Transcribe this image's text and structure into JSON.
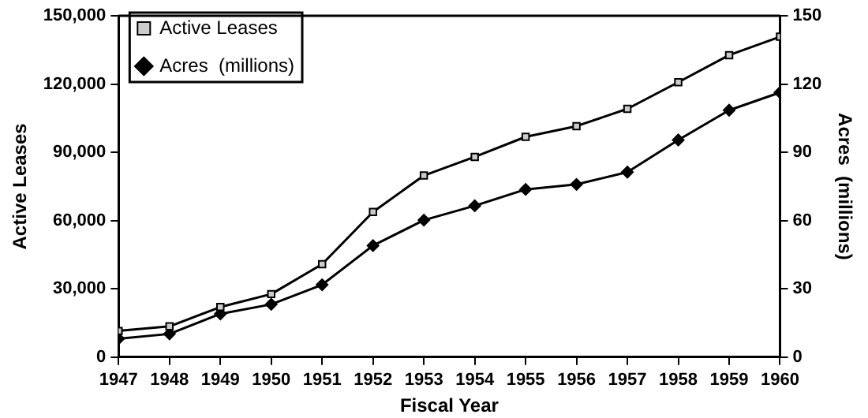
{
  "chart_data": {
    "type": "line",
    "xlabel": "Fiscal Year",
    "ylabel": "Active Leases",
    "y2label": "Acres  (millions)",
    "x": [
      1947,
      1948,
      1949,
      1950,
      1951,
      1952,
      1953,
      1954,
      1955,
      1956,
      1957,
      1958,
      1959,
      1960
    ],
    "xlim": [
      1947,
      1960
    ],
    "xticks": [
      1947,
      1948,
      1949,
      1950,
      1951,
      1952,
      1953,
      1954,
      1955,
      1956,
      1957,
      1958,
      1959,
      1960
    ],
    "ylim": [
      0,
      150000
    ],
    "yticks": [
      0,
      {
        "value": 30000,
        "label": "30,000"
      },
      {
        "value": 60000,
        "label": "60,000"
      },
      {
        "value": 90000,
        "label": "90,000"
      },
      {
        "value": 120000,
        "label": "120,000"
      },
      {
        "value": 150000,
        "label": "150,000"
      }
    ],
    "y2lim": [
      0,
      150
    ],
    "y2ticks": [
      0,
      30,
      60,
      90,
      120,
      150
    ],
    "series": [
      {
        "name": "Active Leases",
        "color": "#000000",
        "marker": "square",
        "values": [
          11500,
          13500,
          22000,
          27700,
          40800,
          63800,
          79800,
          88000,
          96800,
          101500,
          109100,
          120800,
          132700,
          140800
        ]
      },
      {
        "name": "Acres  (millions)",
        "color": "#000000",
        "marker": "diamond",
        "axis": "y2",
        "values": [
          8.1,
          10.2,
          19,
          23.2,
          31.8,
          49,
          60.2,
          66.5,
          73.7,
          75.9,
          81.3,
          95.4,
          108.5,
          116.3
        ]
      }
    ],
    "grid": false,
    "legend": "top left",
    "line_style": "solid"
  }
}
